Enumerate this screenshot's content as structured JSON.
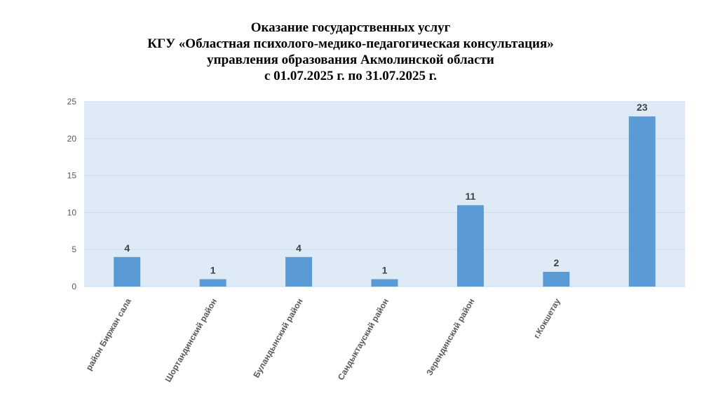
{
  "title_lines": [
    "Оказание государственных услуг",
    "КГУ «Областная психолого-медико-педагогическая консультация»",
    "управления образования Акмолинской области",
    "с 01.07.2025 г. по 31.07.2025 г."
  ],
  "chart_data": {
    "type": "bar",
    "categories": [
      "район Биржан сала",
      "Шортандинский район",
      "Буландынский район",
      "Сандыктауский район",
      "Зерендинский район",
      "г.Кокшетау",
      ""
    ],
    "values": [
      4,
      1,
      4,
      1,
      11,
      2,
      23
    ],
    "data_labels": [
      "4",
      "1",
      "4",
      "1",
      "11",
      "2",
      "23"
    ],
    "ylim": [
      0,
      25
    ],
    "yticks": [
      "0",
      "5",
      "10",
      "15",
      "20",
      "25"
    ],
    "xlabel": "",
    "ylabel": "",
    "grid": true,
    "bar_color": "#5b9bd5",
    "plot_background": "#deebf7",
    "gridline_color": "#c5dcef"
  }
}
